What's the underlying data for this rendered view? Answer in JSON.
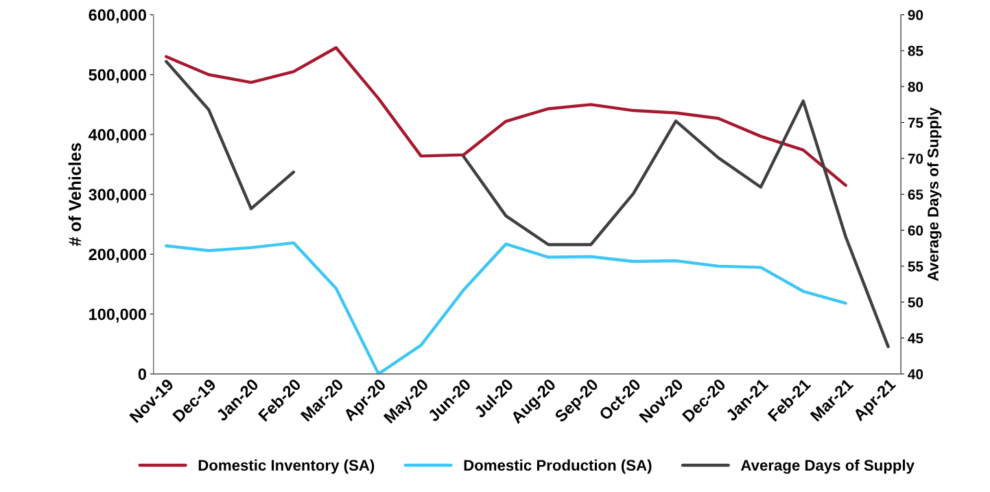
{
  "chart_data": {
    "type": "line",
    "categories": [
      "Nov-19",
      "Dec-19",
      "Jan-20",
      "Feb-20",
      "Mar-20",
      "Apr-20",
      "May-20",
      "Jun-20",
      "Jul-20",
      "Aug-20",
      "Sep-20",
      "Oct-20",
      "Nov-20",
      "Dec-20",
      "Jan-21",
      "Feb-21",
      "Mar-21",
      "Apr-21"
    ],
    "ylabel": "# of Vehicles",
    "y2label": "Average Days of Supply",
    "ylim": [
      0,
      600000
    ],
    "yticks": [
      {
        "value": 0,
        "label": "0"
      },
      {
        "value": 100000,
        "label": "100,000"
      },
      {
        "value": 200000,
        "label": "200,000"
      },
      {
        "value": 300000,
        "label": "300,000"
      },
      {
        "value": 400000,
        "label": "400,000"
      },
      {
        "value": 500000,
        "label": "500,000"
      },
      {
        "value": 600000,
        "label": "600,000"
      }
    ],
    "y2lim": [
      40,
      90
    ],
    "y2ticks": [
      40,
      45,
      50,
      55,
      60,
      65,
      70,
      75,
      80,
      85,
      90
    ],
    "grid": false,
    "legend": "bottom",
    "marker": "none",
    "line_style": "solid",
    "series": [
      {
        "name": "Domestic Inventory (SA)",
        "color": "#a6192e",
        "values": [
          530000,
          500000,
          487000,
          505000,
          545000,
          460000,
          364000,
          366000,
          422000,
          443000,
          450000,
          440000,
          436000,
          427000,
          397000,
          374000,
          315000,
          null
        ]
      },
      {
        "name": "Domestic Production (SA)",
        "color": "#3ec7f4",
        "values": [
          214000,
          206000,
          211000,
          219000,
          143000,
          0,
          48000,
          140000,
          217000,
          195000,
          196000,
          188000,
          189000,
          180000,
          178000,
          138000,
          118000,
          null
        ]
      },
      {
        "name": "Average Days of Supply",
        "color": "#404040",
        "axis": "y2",
        "values": [
          83.5,
          76.8,
          63,
          68.1,
          null,
          null,
          null,
          70.3,
          62,
          58,
          58,
          65.1,
          75.2,
          70.1,
          66,
          78,
          59.1,
          43.8
        ]
      }
    ]
  }
}
